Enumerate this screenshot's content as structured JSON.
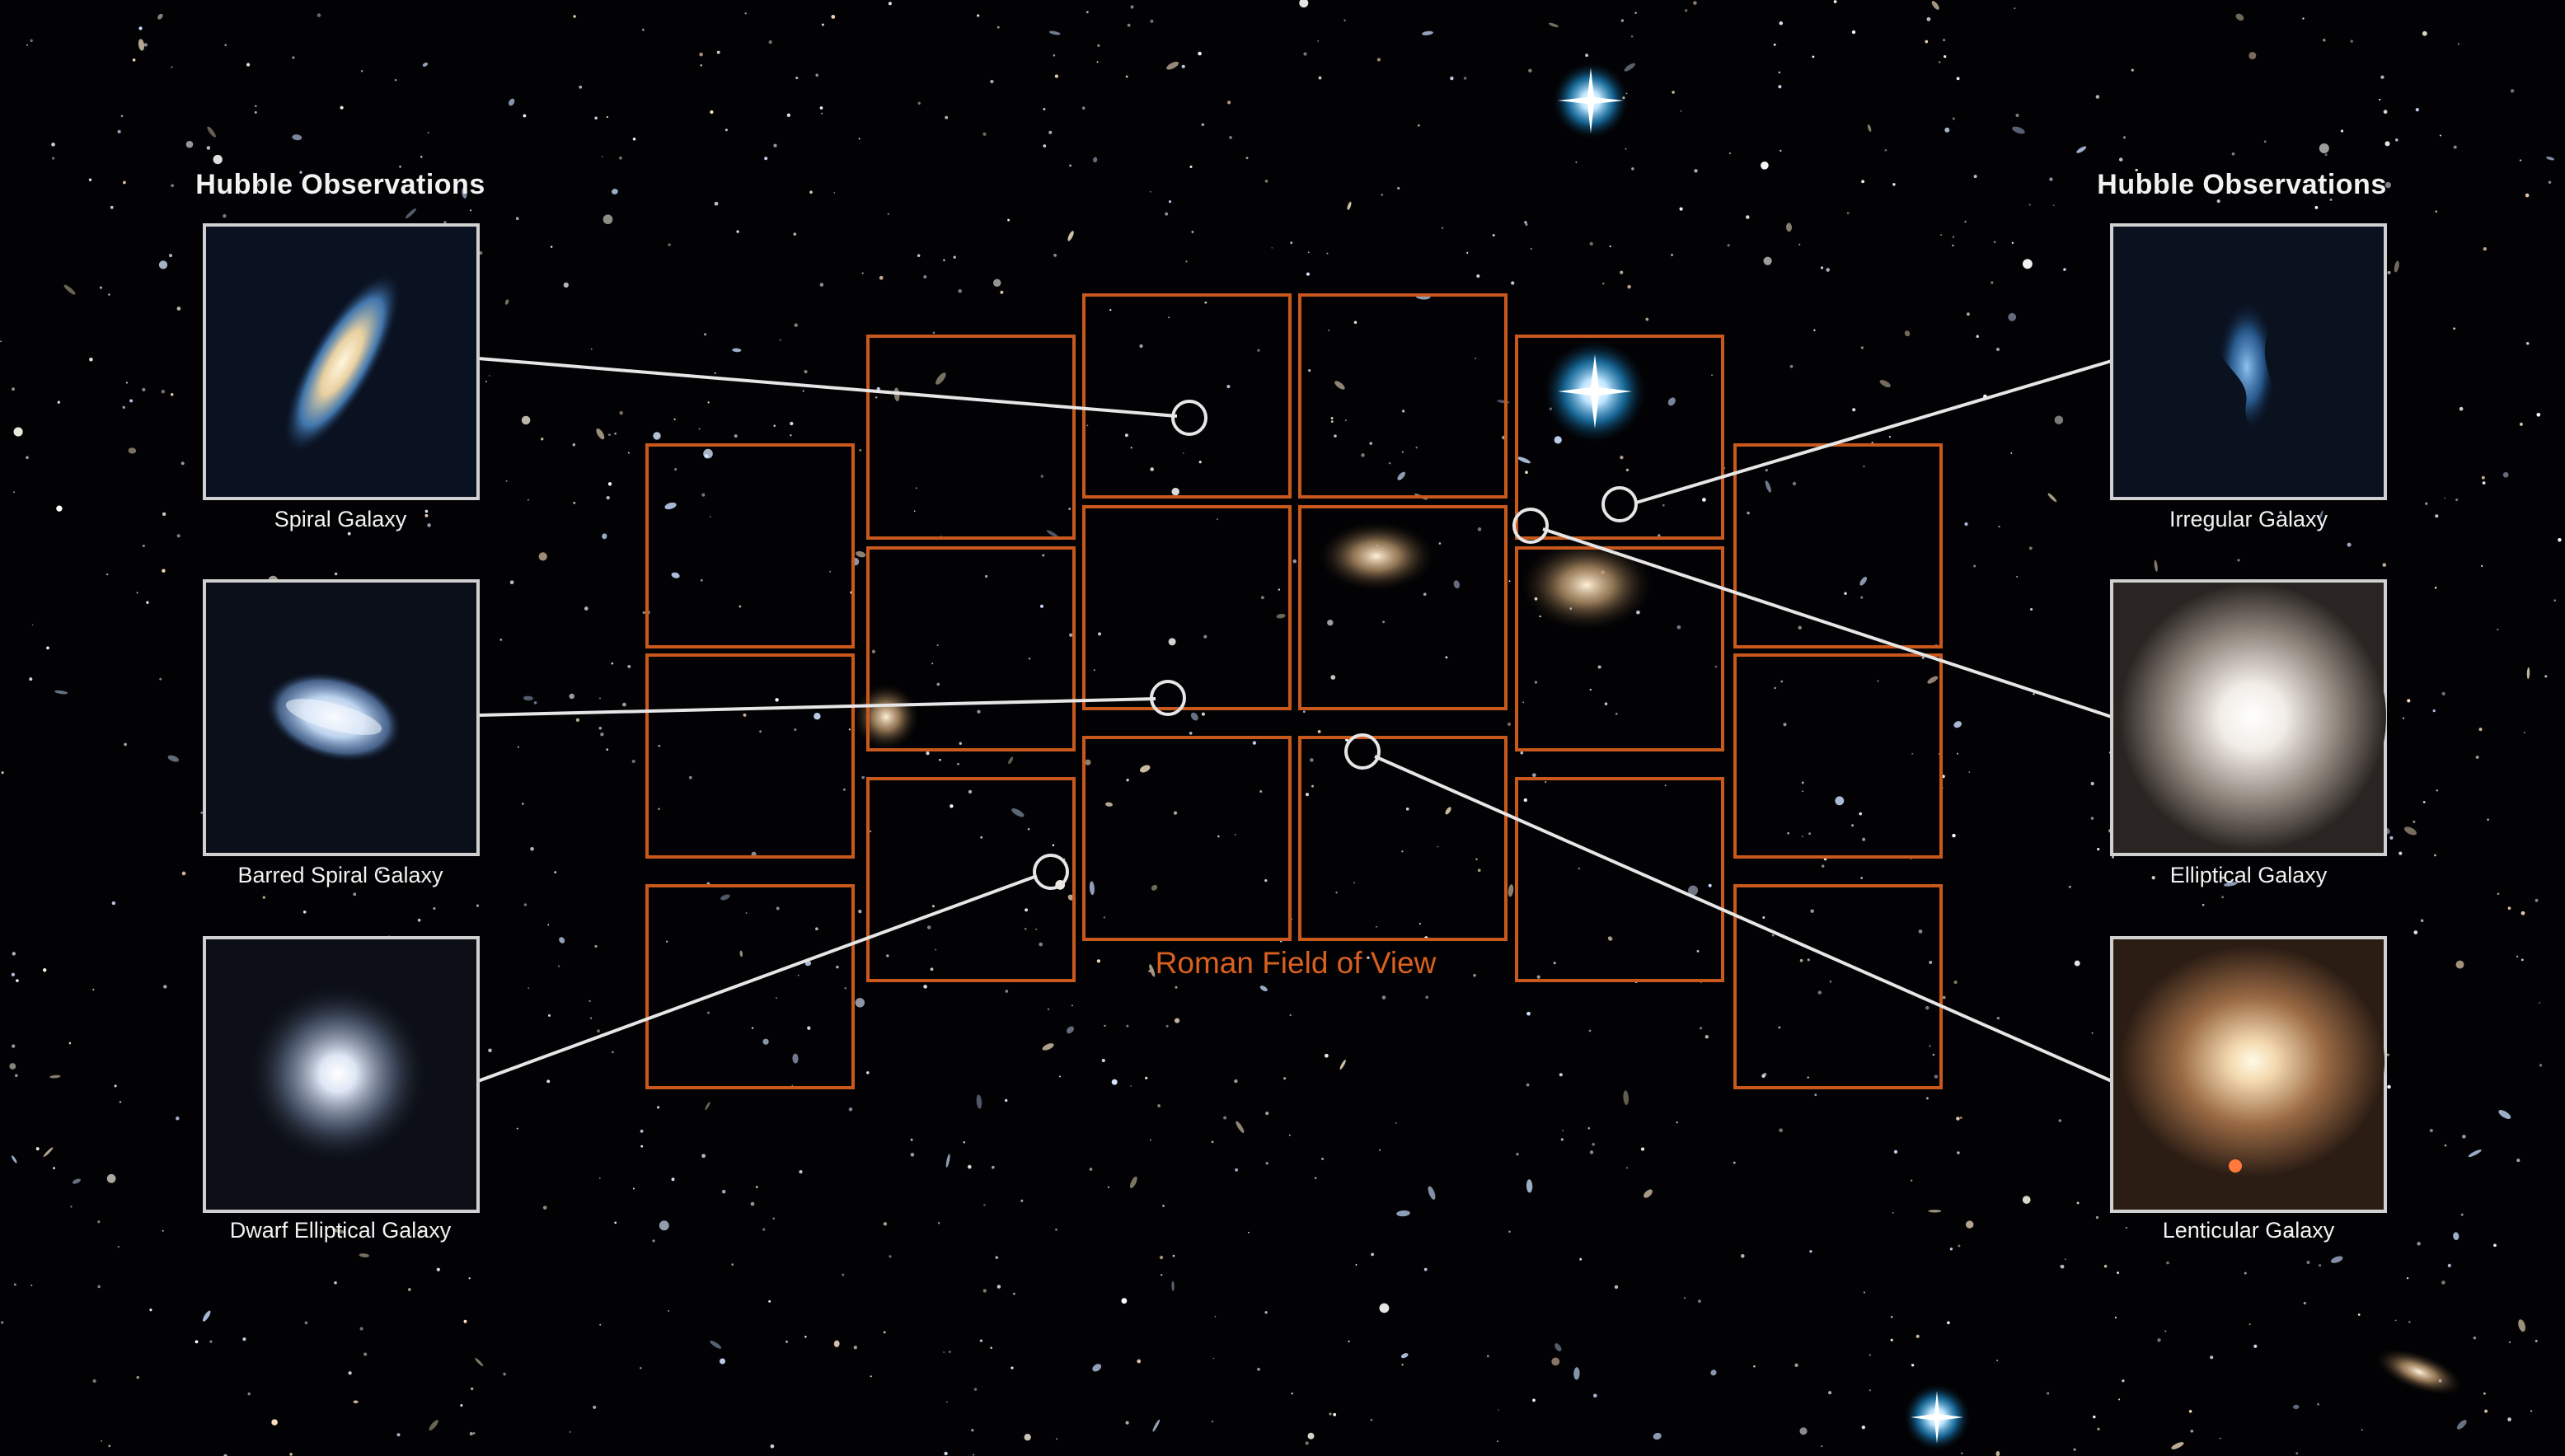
{
  "left_panel": {
    "title": "Hubble Observations",
    "galaxies": [
      {
        "caption": "Spiral Galaxy",
        "icon": "spiral-galaxy-image"
      },
      {
        "caption": "Barred Spiral Galaxy",
        "icon": "barred-spiral-galaxy-image"
      },
      {
        "caption": "Dwarf Elliptical Galaxy",
        "icon": "dwarf-elliptical-galaxy-image"
      }
    ]
  },
  "right_panel": {
    "title": "Hubble Observations",
    "galaxies": [
      {
        "caption": "Irregular Galaxy",
        "icon": "irregular-galaxy-image"
      },
      {
        "caption": "Elliptical Galaxy",
        "icon": "elliptical-galaxy-image"
      },
      {
        "caption": "Lenticular Galaxy",
        "icon": "lenticular-galaxy-image"
      }
    ]
  },
  "field_of_view": {
    "label": "Roman Field of View",
    "detector_count": 18,
    "outline_color": "#c8581c"
  },
  "colors": {
    "background": "#020204",
    "connector": "#e6e6e6",
    "panel_border": "#d0d0d0",
    "label_text": "#f2f2f2",
    "fov_label": "#d9601f"
  }
}
